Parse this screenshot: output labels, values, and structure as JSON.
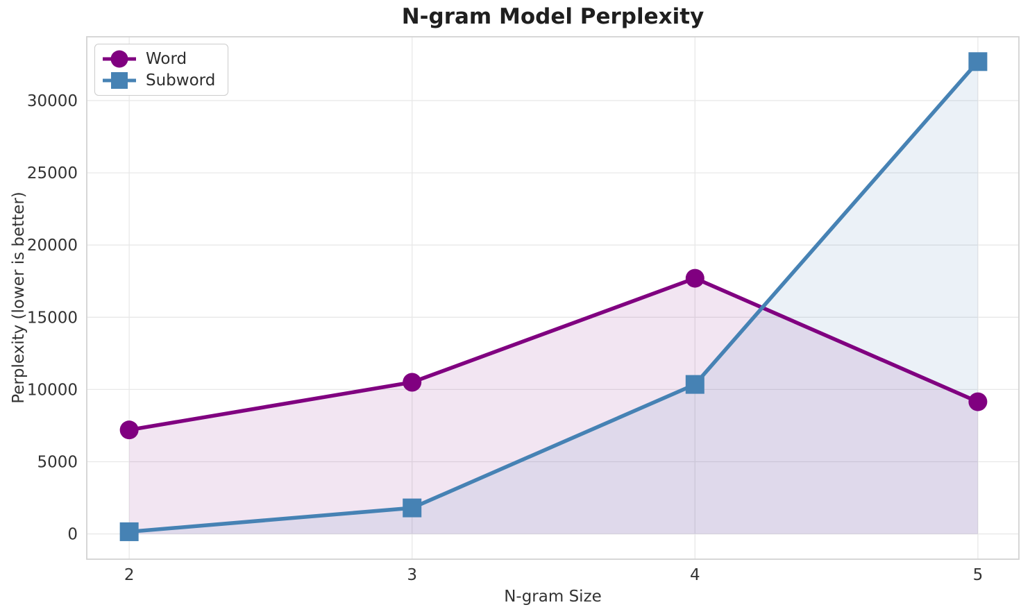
{
  "chart_data": {
    "type": "line",
    "title": "N-gram Model Perplexity",
    "xlabel": "N-gram Size",
    "ylabel": "Perplexity (lower is better)",
    "x": [
      2,
      3,
      4,
      5
    ],
    "series": [
      {
        "name": "Word",
        "marker": "circle",
        "color": "#800080",
        "fill_alpha": 0.1,
        "values": [
          7200,
          10500,
          17700,
          9150
        ]
      },
      {
        "name": "Subword",
        "marker": "square",
        "color": "#4682B4",
        "fill_alpha": 0.11,
        "values": [
          150,
          1800,
          10350,
          32700
        ]
      }
    ],
    "xticks": [
      2,
      3,
      4,
      5
    ],
    "yticks": [
      0,
      5000,
      10000,
      15000,
      20000,
      25000,
      30000
    ],
    "xlim": [
      1.85,
      5.145
    ],
    "ylim": [
      -1750,
      34420
    ],
    "grid": true,
    "area_fill": true,
    "legend_position": "upper left"
  },
  "colors": {
    "grid": "#e8e8e8",
    "spine": "#d3d3d3",
    "tick": "#333333",
    "title": "#1f1f1f",
    "legend_border": "#cccccc",
    "background": "#ffffff"
  }
}
